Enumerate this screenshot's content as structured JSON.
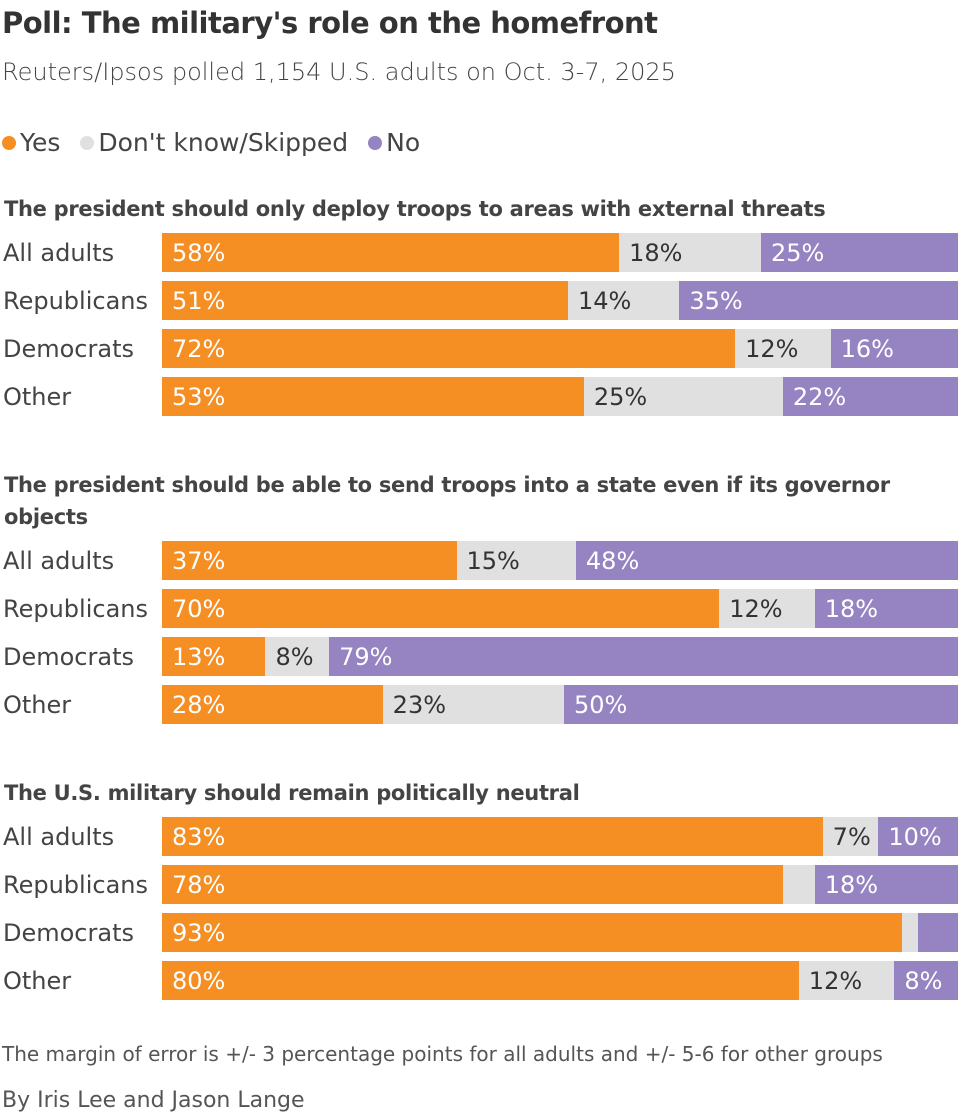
{
  "title": "Poll: The military's role on the homefront",
  "subtitle": "Reuters/Ipsos polled 1,154 U.S. adults on Oct. 3-7, 2025",
  "legend": [
    {
      "label": "Yes",
      "color": "#f58f23"
    },
    {
      "label": "Don't know/Skipped",
      "color": "#e0e0e0"
    },
    {
      "label": "No",
      "color": "#9683c2"
    }
  ],
  "note": "The margin of error is +/- 3 percentage points for all adults and +/- 5-6 for other groups",
  "byline": "By Iris Lee and Jason Lange",
  "chart_data": [
    {
      "type": "bar",
      "stacked": true,
      "orientation": "horizontal",
      "title": "The president should only deploy troops to areas with external threats",
      "categories": [
        "All adults",
        "Republicans",
        "Democrats",
        "Other"
      ],
      "series": [
        {
          "name": "Yes",
          "values": [
            58,
            51,
            72,
            53
          ],
          "labels": [
            "58%",
            "51%",
            "72%",
            "53%"
          ]
        },
        {
          "name": "Don't know/Skipped",
          "values": [
            18,
            14,
            12,
            25
          ],
          "labels": [
            "18%",
            "14%",
            "12%",
            "25%"
          ]
        },
        {
          "name": "No",
          "values": [
            25,
            35,
            16,
            22
          ],
          "labels": [
            "25%",
            "35%",
            "16%",
            "22%"
          ]
        }
      ]
    },
    {
      "type": "bar",
      "stacked": true,
      "orientation": "horizontal",
      "title": "The president should be able to send troops into a state even if its governor objects",
      "categories": [
        "All adults",
        "Republicans",
        "Democrats",
        "Other"
      ],
      "series": [
        {
          "name": "Yes",
          "values": [
            37,
            70,
            13,
            28
          ],
          "labels": [
            "37%",
            "70%",
            "13%",
            "28%"
          ]
        },
        {
          "name": "Don't know/Skipped",
          "values": [
            15,
            12,
            8,
            23
          ],
          "labels": [
            "15%",
            "12%",
            "8%",
            "23%"
          ]
        },
        {
          "name": "No",
          "values": [
            48,
            18,
            79,
            50
          ],
          "labels": [
            "48%",
            "18%",
            "79%",
            "50%"
          ]
        }
      ]
    },
    {
      "type": "bar",
      "stacked": true,
      "orientation": "horizontal",
      "title": "The U.S. military should remain politically neutral",
      "categories": [
        "All adults",
        "Republicans",
        "Democrats",
        "Other"
      ],
      "series": [
        {
          "name": "Yes",
          "values": [
            83,
            78,
            93,
            80
          ],
          "labels": [
            "83%",
            "78%",
            "93%",
            "80%"
          ]
        },
        {
          "name": "Don't know/Skipped",
          "values": [
            7,
            4,
            2,
            12
          ],
          "labels": [
            "7%",
            "",
            "",
            "12%"
          ]
        },
        {
          "name": "No",
          "values": [
            10,
            18,
            5,
            8
          ],
          "labels": [
            "10%",
            "18%",
            "",
            "8%"
          ]
        }
      ]
    }
  ]
}
